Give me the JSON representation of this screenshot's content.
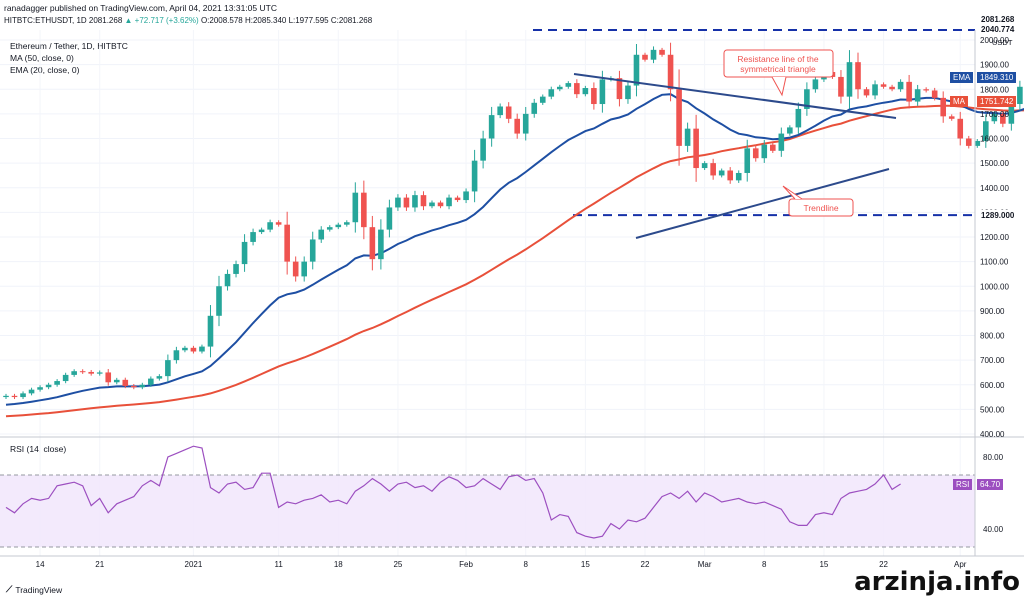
{
  "header": {
    "publisher_line": "ranadagger published on TradingView.com, April 04, 2021 13:31:05 UTC",
    "ticker": "HITBTC:ETHUSDT, 1D",
    "last": "2081.268",
    "change": "▲ +72.717 (+3.62%)",
    "ohlc": "O:2008.578 H:2085.340 L:1977.595 C:2081.268"
  },
  "legend": {
    "title": "Ethereum / Tether, 1D, HITBTC",
    "ma": "MA (50, close, 0)",
    "ema": "EMA (20, close, 0)",
    "rsi": "RSI (14, close)"
  },
  "footer": {
    "logo_text": "TradingView",
    "watermark": "arzinja.info"
  },
  "colors": {
    "up": "#26a69a",
    "down": "#ef5350",
    "ema": "#1e4fa3",
    "ma": "#e8503a",
    "rsi": "#9c4fc0",
    "level": "#1631a8",
    "trend": "#2c4a8c"
  },
  "chart_data": [
    {
      "type": "candlestick",
      "title": "Ethereum / Tether, 1D, HITBTC",
      "currency": "USDT",
      "x_ticks": [
        "14",
        "21",
        "2021",
        "11",
        "18",
        "25",
        "Feb",
        "8",
        "15",
        "22",
        "Mar",
        "8",
        "15",
        "22",
        "Apr"
      ],
      "y_ticks": [
        400,
        500,
        600,
        700,
        800,
        900,
        1000,
        1100,
        1200,
        1300,
        1400,
        1500,
        1600,
        1700,
        1800,
        1900,
        2000
      ],
      "ylim": [
        400,
        2100
      ],
      "close": [
        555,
        550,
        565,
        580,
        590,
        600,
        615,
        640,
        655,
        652,
        645,
        650,
        610,
        620,
        595,
        590,
        600,
        625,
        635,
        700,
        740,
        750,
        735,
        755,
        880,
        1000,
        1050,
        1090,
        1180,
        1220,
        1230,
        1260,
        1250,
        1100,
        1040,
        1100,
        1190,
        1230,
        1240,
        1250,
        1260,
        1380,
        1240,
        1110,
        1230,
        1320,
        1360,
        1320,
        1370,
        1325,
        1340,
        1325,
        1360,
        1350,
        1385,
        1510,
        1600,
        1695,
        1730,
        1680,
        1620,
        1700,
        1745,
        1770,
        1800,
        1810,
        1825,
        1780,
        1805,
        1740,
        1840,
        1845,
        1760,
        1815,
        1940,
        1920,
        1960,
        1940,
        1800,
        1570,
        1640,
        1480,
        1500,
        1450,
        1470,
        1430,
        1460,
        1560,
        1520,
        1575,
        1550,
        1620,
        1645,
        1720,
        1800,
        1840,
        1870,
        1850,
        1770,
        1910,
        1800,
        1775,
        1820,
        1810,
        1800,
        1830,
        1750,
        1800,
        1795,
        1765,
        1690,
        1680,
        1600,
        1570,
        1590,
        1670,
        1700,
        1660,
        1740,
        1810,
        1845,
        1900,
        1920,
        1985,
        2145,
        2010,
        2081
      ],
      "levels": [
        {
          "label": "2040.774",
          "value": 2040.774
        },
        {
          "label": "1289.000",
          "value": 1289
        }
      ],
      "indicators": [
        {
          "name": "EMA",
          "label": "1849.310",
          "value": 1849.31
        },
        {
          "name": "MA",
          "label": "1751.742",
          "value": 1751.742
        }
      ],
      "last_price": {
        "label": "2081.268",
        "countdown": "10:29:03"
      },
      "annotations": [
        "Resistance line of the symmetrical triangle",
        "Trendline"
      ]
    },
    {
      "type": "line",
      "title": "RSI (14, close)",
      "y_ticks": [
        40,
        80
      ],
      "ylim": [
        20,
        90
      ],
      "values": [
        52,
        49,
        54,
        57,
        56,
        57,
        64,
        65,
        66,
        64,
        53,
        57,
        49,
        54,
        56,
        58,
        64,
        67,
        64,
        80,
        82,
        84,
        86,
        85,
        63,
        60,
        65,
        66,
        62,
        63,
        71,
        71,
        52,
        55,
        54,
        56,
        57,
        59,
        55,
        56,
        54,
        61,
        64,
        68,
        65,
        61,
        65,
        66,
        63,
        64,
        61,
        66,
        69,
        67,
        63,
        64,
        68,
        65,
        62,
        69,
        70,
        67,
        68,
        60,
        45,
        48,
        47,
        38,
        36,
        35,
        36,
        43,
        40,
        45,
        44,
        46,
        52,
        58,
        60,
        57,
        61,
        55,
        60,
        58,
        55,
        56,
        57,
        55,
        54,
        55,
        53,
        51,
        44,
        42,
        42,
        48,
        49,
        48,
        57,
        60,
        61,
        62,
        65,
        70,
        62,
        65
      ],
      "last": {
        "label": "64.70",
        "value": 64.7
      }
    }
  ]
}
